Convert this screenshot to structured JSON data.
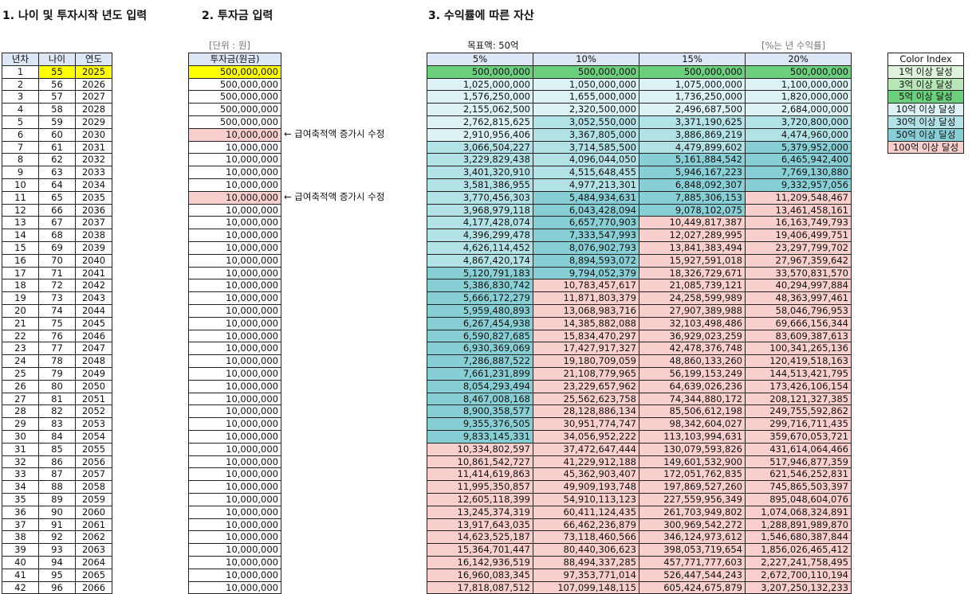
{
  "titles": [
    "1. 나이 및 투자시작 년도 입력",
    "2. 투자금 입력",
    "3. 수익률에 따른 자산"
  ],
  "table1": {
    "header": [
      "년차",
      "나이",
      "연도"
    ],
    "rows": [
      [
        1,
        55,
        2025
      ],
      [
        2,
        56,
        2026
      ],
      [
        3,
        57,
        2027
      ],
      [
        4,
        58,
        2028
      ],
      [
        5,
        59,
        2029
      ],
      [
        6,
        60,
        2030
      ],
      [
        7,
        61,
        2031
      ],
      [
        8,
        62,
        2032
      ],
      [
        9,
        63,
        2033
      ],
      [
        10,
        64,
        2034
      ],
      [
        11,
        65,
        2035
      ],
      [
        12,
        66,
        2036
      ],
      [
        13,
        67,
        2037
      ],
      [
        14,
        68,
        2038
      ],
      [
        15,
        69,
        2039
      ],
      [
        16,
        70,
        2040
      ],
      [
        17,
        71,
        2041
      ],
      [
        18,
        72,
        2042
      ],
      [
        19,
        73,
        2043
      ],
      [
        20,
        74,
        2044
      ],
      [
        21,
        75,
        2045
      ],
      [
        22,
        76,
        2046
      ],
      [
        23,
        77,
        2047
      ],
      [
        24,
        78,
        2048
      ],
      [
        25,
        79,
        2049
      ],
      [
        26,
        80,
        2050
      ],
      [
        27,
        81,
        2051
      ],
      [
        28,
        82,
        2052
      ],
      [
        29,
        83,
        2053
      ],
      [
        30,
        84,
        2054
      ],
      [
        31,
        85,
        2055
      ],
      [
        32,
        86,
        2056
      ],
      [
        33,
        87,
        2057
      ],
      [
        34,
        88,
        2058
      ],
      [
        35,
        89,
        2059
      ],
      [
        36,
        90,
        2060
      ],
      [
        37,
        91,
        2061
      ],
      [
        38,
        92,
        2062
      ],
      [
        39,
        93,
        2063
      ],
      [
        40,
        94,
        2064
      ],
      [
        41,
        95,
        2065
      ],
      [
        42,
        96,
        2066
      ]
    ]
  },
  "table2": {
    "unit": "[단위 : 원]",
    "header": "투자금(원금)",
    "rows": [
      {
        "amount": "500,000,000"
      },
      {
        "amount": "500,000,000"
      },
      {
        "amount": "500,000,000"
      },
      {
        "amount": "500,000,000"
      },
      {
        "amount": "500,000,000"
      },
      {
        "amount": "10,000,000",
        "note": "← 급여축적액 증가시 수정"
      },
      {
        "amount": "10,000,000"
      },
      {
        "amount": "10,000,000"
      },
      {
        "amount": "10,000,000"
      },
      {
        "amount": "10,000,000"
      },
      {
        "amount": "10,000,000",
        "note": "← 급여축적액 증가시 수정"
      },
      {
        "amount": "10,000,000"
      },
      {
        "amount": "10,000,000"
      },
      {
        "amount": "10,000,000"
      },
      {
        "amount": "10,000,000"
      },
      {
        "amount": "10,000,000"
      },
      {
        "amount": "10,000,000"
      },
      {
        "amount": "10,000,000"
      },
      {
        "amount": "10,000,000"
      },
      {
        "amount": "10,000,000"
      },
      {
        "amount": "10,000,000"
      },
      {
        "amount": "10,000,000"
      },
      {
        "amount": "10,000,000"
      },
      {
        "amount": "10,000,000"
      },
      {
        "amount": "10,000,000"
      },
      {
        "amount": "10,000,000"
      },
      {
        "amount": "10,000,000"
      },
      {
        "amount": "10,000,000"
      },
      {
        "amount": "10,000,000"
      },
      {
        "amount": "10,000,000"
      },
      {
        "amount": "10,000,000"
      },
      {
        "amount": "10,000,000"
      },
      {
        "amount": "10,000,000"
      },
      {
        "amount": "10,000,000"
      },
      {
        "amount": "10,000,000"
      },
      {
        "amount": "10,000,000"
      },
      {
        "amount": "10,000,000"
      },
      {
        "amount": "10,000,000"
      },
      {
        "amount": "10,000,000"
      },
      {
        "amount": "10,000,000"
      },
      {
        "amount": "10,000,000"
      },
      {
        "amount": "10,000,000"
      }
    ]
  },
  "table3": {
    "target": "목표액: 50억",
    "rate_note": "[%는 년 수익률]",
    "header": [
      "5%",
      "10%",
      "15%",
      "20%"
    ],
    "rows": [
      [
        "500,000,000",
        "500,000,000",
        "500,000,000",
        "500,000,000"
      ],
      [
        "1,025,000,000",
        "1,050,000,000",
        "1,075,000,000",
        "1,100,000,000"
      ],
      [
        "1,576,250,000",
        "1,655,000,000",
        "1,736,250,000",
        "1,820,000,000"
      ],
      [
        "2,155,062,500",
        "2,320,500,000",
        "2,496,687,500",
        "2,684,000,000"
      ],
      [
        "2,762,815,625",
        "3,052,550,000",
        "3,371,190,625",
        "3,720,800,000"
      ],
      [
        "2,910,956,406",
        "3,367,805,000",
        "3,886,869,219",
        "4,474,960,000"
      ],
      [
        "3,066,504,227",
        "3,714,585,500",
        "4,479,899,602",
        "5,379,952,000"
      ],
      [
        "3,229,829,438",
        "4,096,044,050",
        "5,161,884,542",
        "6,465,942,400"
      ],
      [
        "3,401,320,910",
        "4,515,648,455",
        "5,946,167,223",
        "7,769,130,880"
      ],
      [
        "3,581,386,955",
        "4,977,213,301",
        "6,848,092,307",
        "9,332,957,056"
      ],
      [
        "3,770,456,303",
        "5,484,934,631",
        "7,885,306,153",
        "11,209,548,467"
      ],
      [
        "3,968,979,118",
        "6,043,428,094",
        "9,078,102,075",
        "13,461,458,161"
      ],
      [
        "4,177,428,074",
        "6,657,770,903",
        "10,449,817,387",
        "16,163,749,793"
      ],
      [
        "4,396,299,478",
        "7,333,547,993",
        "12,027,289,995",
        "19,406,499,751"
      ],
      [
        "4,626,114,452",
        "8,076,902,793",
        "13,841,383,494",
        "23,297,799,702"
      ],
      [
        "4,867,420,174",
        "8,894,593,072",
        "15,927,591,018",
        "27,967,359,642"
      ],
      [
        "5,120,791,183",
        "9,794,052,379",
        "18,326,729,671",
        "33,570,831,570"
      ],
      [
        "5,386,830,742",
        "10,783,457,617",
        "21,085,739,121",
        "40,294,997,884"
      ],
      [
        "5,666,172,279",
        "11,871,803,379",
        "24,258,599,989",
        "48,363,997,461"
      ],
      [
        "5,959,480,893",
        "13,068,983,716",
        "27,907,389,988",
        "58,046,796,953"
      ],
      [
        "6,267,454,938",
        "14,385,882,088",
        "32,103,498,486",
        "69,666,156,344"
      ],
      [
        "6,590,827,685",
        "15,834,470,297",
        "36,929,023,259",
        "83,609,387,613"
      ],
      [
        "6,930,369,069",
        "17,427,917,327",
        "42,478,376,748",
        "100,341,265,136"
      ],
      [
        "7,286,887,522",
        "19,180,709,059",
        "48,860,133,260",
        "120,419,518,163"
      ],
      [
        "7,661,231,899",
        "21,108,779,965",
        "56,199,153,249",
        "144,513,421,795"
      ],
      [
        "8,054,293,494",
        "23,229,657,962",
        "64,639,026,236",
        "173,426,106,154"
      ],
      [
        "8,467,008,168",
        "25,562,623,758",
        "74,344,880,172",
        "208,121,327,385"
      ],
      [
        "8,900,358,577",
        "28,128,886,134",
        "85,506,612,198",
        "249,755,592,862"
      ],
      [
        "9,355,376,505",
        "30,951,774,747",
        "98,342,604,027",
        "299,716,711,435"
      ],
      [
        "9,833,145,331",
        "34,056,952,222",
        "113,103,994,631",
        "359,670,053,721"
      ],
      [
        "10,334,802,597",
        "37,472,647,444",
        "130,079,593,826",
        "431,614,064,466"
      ],
      [
        "10,861,542,727",
        "41,229,912,188",
        "149,601,532,900",
        "517,946,877,359"
      ],
      [
        "11,414,619,863",
        "45,362,903,407",
        "172,051,762,835",
        "621,546,252,831"
      ],
      [
        "11,995,350,857",
        "49,909,193,748",
        "197,869,527,260",
        "745,865,503,397"
      ],
      [
        "12,605,118,399",
        "54,910,113,123",
        "227,559,956,349",
        "895,048,604,076"
      ],
      [
        "13,245,374,319",
        "60,411,124,435",
        "261,703,949,802",
        "1,074,068,324,891"
      ],
      [
        "13,917,643,035",
        "66,462,236,879",
        "300,969,542,272",
        "1,288,891,989,870"
      ],
      [
        "14,623,525,187",
        "73,118,460,566",
        "346,124,973,612",
        "1,546,680,387,844"
      ],
      [
        "15,364,701,447",
        "80,440,306,623",
        "398,053,719,654",
        "1,856,026,465,412"
      ],
      [
        "16,142,936,519",
        "88,494,337,285",
        "457,771,777,603",
        "2,227,241,758,495"
      ],
      [
        "16,960,083,345",
        "97,353,771,014",
        "526,447,544,243",
        "2,672,700,110,194"
      ],
      [
        "17,818,087,512",
        "107,099,148,115",
        "605,424,675,879",
        "3,207,250,132,233"
      ]
    ]
  },
  "legend": {
    "title": "Color Index",
    "items": [
      {
        "value": 100000000,
        "label": "1억 이상 달성",
        "color": "#dff2dc"
      },
      {
        "value": 300000000,
        "label": "3억 이상 달성",
        "color": "#b9e6b9"
      },
      {
        "value": 500000000,
        "label": "5억 이상 달성",
        "color": "#6ccf7e"
      },
      {
        "value": 1000000000,
        "label": "10억 이상 달성",
        "color": "#dcf2f4"
      },
      {
        "value": 3000000000,
        "label": "30억 이상 달성",
        "color": "#b3e2e6"
      },
      {
        "value": 5000000000,
        "label": "50억 이상 달성",
        "color": "#88cfd5"
      },
      {
        "value": 10000000000,
        "label": "100억 이상 달성",
        "color": "#f8cfcd"
      }
    ]
  }
}
